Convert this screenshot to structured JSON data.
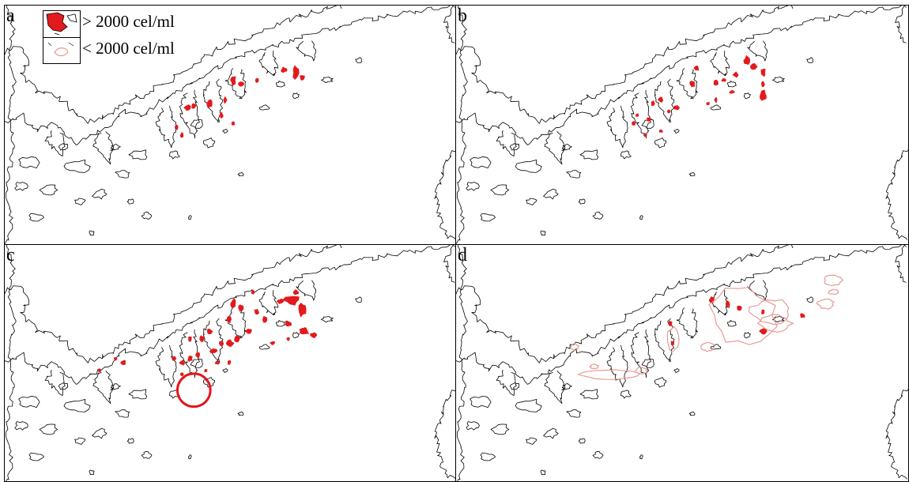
{
  "colors": {
    "coast": "#000000",
    "high_density": "#e31a1c",
    "low_density": "#e89a93",
    "marker": "#e4141b"
  },
  "legend": {
    "high": "> 2000 cel/ml",
    "low": "< 2000 cel/ml"
  },
  "panels": [
    {
      "label": "a",
      "high_density_patches": 14,
      "low_density_patches": 0,
      "has_circle_marker": false
    },
    {
      "label": "b",
      "high_density_patches": 22,
      "low_density_patches": 0,
      "has_circle_marker": false
    },
    {
      "label": "c",
      "high_density_patches": 34,
      "low_density_patches": 0,
      "has_circle_marker": true
    },
    {
      "label": "d",
      "high_density_patches": 8,
      "low_density_patches": 12,
      "has_circle_marker": false
    }
  ]
}
